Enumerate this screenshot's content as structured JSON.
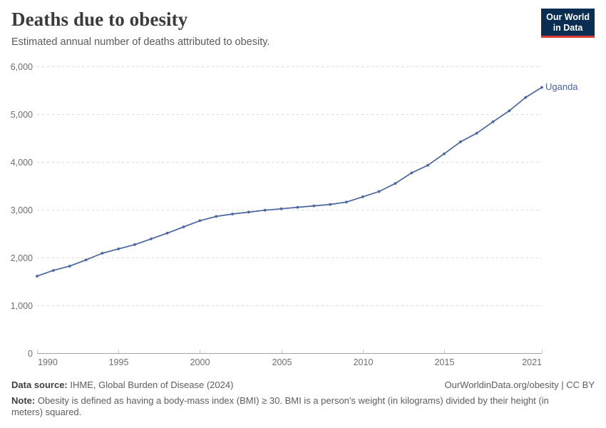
{
  "header": {
    "title": "Deaths due to obesity",
    "subtitle": "Estimated annual number of deaths attributed to obesity.",
    "logo": {
      "line1": "Our World",
      "line2": "in Data"
    }
  },
  "chart_data": {
    "type": "line",
    "title": "Deaths due to obesity",
    "xlabel": "",
    "ylabel": "",
    "xlim": [
      1990,
      2021
    ],
    "ylim": [
      0,
      6000
    ],
    "grid": "dashed-horizontal",
    "legend_position": "end-of-line-label",
    "x_ticks": [
      1990,
      1995,
      2000,
      2005,
      2010,
      2015,
      2021
    ],
    "y_ticks": [
      0,
      1000,
      2000,
      3000,
      4000,
      5000,
      6000
    ],
    "y_tick_labels": [
      "0",
      "1,000",
      "2,000",
      "3,000",
      "4,000",
      "5,000",
      "6,000"
    ],
    "x": [
      1990,
      1991,
      1992,
      1993,
      1994,
      1995,
      1996,
      1997,
      1998,
      1999,
      2000,
      2001,
      2002,
      2003,
      2004,
      2005,
      2006,
      2007,
      2008,
      2009,
      2010,
      2011,
      2012,
      2013,
      2014,
      2015,
      2016,
      2017,
      2018,
      2019,
      2020,
      2021
    ],
    "series": [
      {
        "name": "Uganda",
        "color": "#4a66a0",
        "values": [
          1610,
          1730,
          1820,
          1950,
          2090,
          2180,
          2270,
          2390,
          2510,
          2640,
          2770,
          2860,
          2910,
          2950,
          2990,
          3020,
          3050,
          3080,
          3110,
          3160,
          3270,
          3380,
          3550,
          3770,
          3930,
          4170,
          4420,
          4600,
          4840,
          5070,
          5350,
          5560
        ]
      }
    ]
  },
  "colors": {
    "line": "#4a66a0",
    "logo_bg": "#0a2e52",
    "logo_underline": "#d73b31",
    "grid": "#dcdcdc",
    "axis": "#a1a1a1",
    "tick": "#c8c8c8",
    "tick_label": "#6e6e6e"
  },
  "footer": {
    "data_source_label": "Data source:",
    "data_source_value": "IHME, Global Burden of Disease (2024)",
    "license": "OurWorldinData.org/obesity | CC BY",
    "note_label": "Note:",
    "note_value": "Obesity is defined as having a body-mass index (BMI) ≥ 30. BMI is a person's weight (in kilograms) divided by their height (in meters) squared."
  }
}
